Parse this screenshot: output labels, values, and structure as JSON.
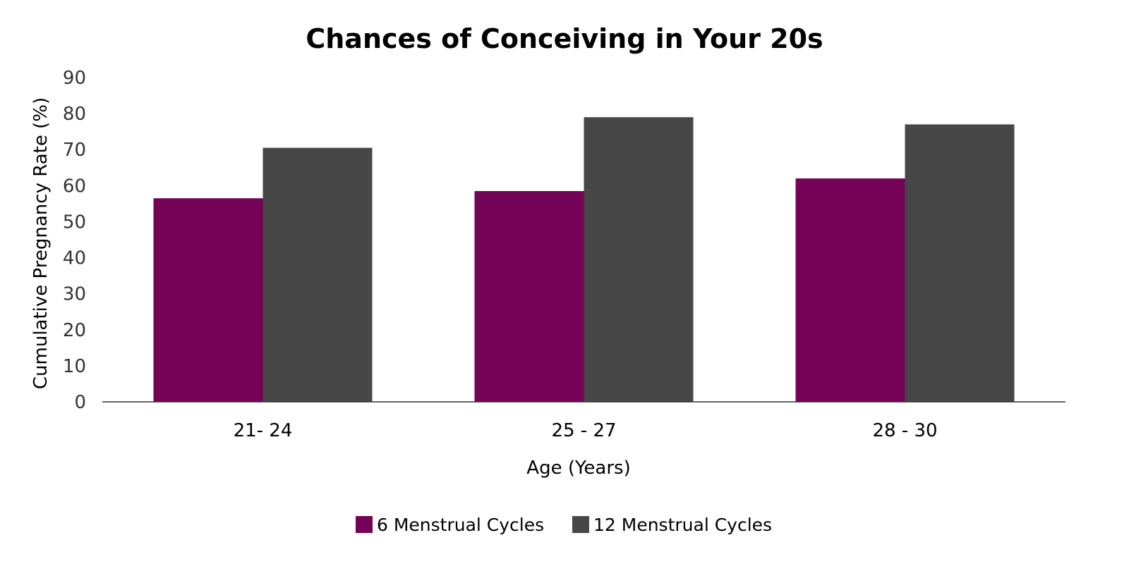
{
  "chart_data": {
    "type": "bar",
    "title": "Chances of Conceiving in Your 20s",
    "xlabel": "Age (Years)",
    "ylabel": "Cumulative Pregnancy Rate (%)",
    "categories": [
      "21- 24",
      "25 - 27",
      "28 - 30"
    ],
    "series": [
      {
        "name": "6 Menstrual Cycles",
        "values": [
          56.5,
          58.5,
          62
        ],
        "color": "#740358"
      },
      {
        "name": "12 Menstrual Cycles",
        "values": [
          70.5,
          79,
          77
        ],
        "color": "#474747"
      }
    ],
    "ylim": [
      0,
      90
    ],
    "yticks": [
      0,
      10,
      20,
      30,
      40,
      50,
      60,
      70,
      80,
      90
    ],
    "grid": false,
    "legend_position": "bottom"
  }
}
